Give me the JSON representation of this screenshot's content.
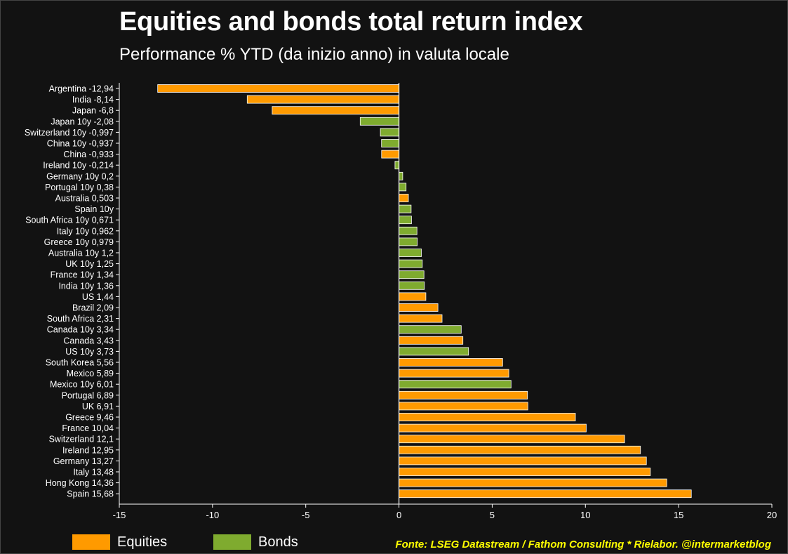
{
  "title": "Equities and bonds total return index",
  "subtitle": "Performance % YTD (da inizio anno) in valuta locale",
  "source": "Fonte: LSEG Datastream / Fathom Consulting * Rielabor. @intermarketblog",
  "legend": [
    {
      "label": "Equities",
      "color": "#ff9a00"
    },
    {
      "label": "Bonds",
      "color": "#7fab2f"
    }
  ],
  "chart_data": {
    "type": "bar",
    "orientation": "horizontal",
    "title": "Equities and bonds total return index",
    "subtitle": "Performance % YTD (da inizio anno) in valuta locale",
    "xlim": [
      -15,
      20
    ],
    "xticks": [
      -15,
      -10,
      -5,
      0,
      5,
      10,
      15,
      20
    ],
    "grid": false,
    "legend_position": "bottom",
    "series": [
      {
        "name": "Equities",
        "color": "#ff9a00"
      },
      {
        "name": "Bonds",
        "color": "#7fab2f"
      }
    ],
    "bars": [
      {
        "label": "Argentina -12,94",
        "value": -12.94,
        "series": "Equities"
      },
      {
        "label": "India -8,14",
        "value": -8.14,
        "series": "Equities"
      },
      {
        "label": "Japan -6,8",
        "value": -6.8,
        "series": "Equities"
      },
      {
        "label": "Japan 10y -2,08",
        "value": -2.08,
        "series": "Bonds"
      },
      {
        "label": "Switzerland 10y -0,997",
        "value": -0.997,
        "series": "Bonds"
      },
      {
        "label": "China 10y -0,937",
        "value": -0.937,
        "series": "Bonds"
      },
      {
        "label": "China -0,933",
        "value": -0.933,
        "series": "Equities"
      },
      {
        "label": "Ireland 10y -0,214",
        "value": -0.214,
        "series": "Bonds"
      },
      {
        "label": "Germany 10y 0,2",
        "value": 0.2,
        "series": "Bonds"
      },
      {
        "label": "Portugal 10y 0,38",
        "value": 0.38,
        "series": "Bonds"
      },
      {
        "label": "Australia 0,503",
        "value": 0.503,
        "series": "Equities"
      },
      {
        "label": "Spain 10y",
        "value": 0.65,
        "series": "Bonds"
      },
      {
        "label": "South Africa 10y 0,671",
        "value": 0.671,
        "series": "Bonds"
      },
      {
        "label": "Italy 10y 0,962",
        "value": 0.962,
        "series": "Bonds"
      },
      {
        "label": "Greece 10y 0,979",
        "value": 0.979,
        "series": "Bonds"
      },
      {
        "label": "Australia 10y 1,2",
        "value": 1.2,
        "series": "Bonds"
      },
      {
        "label": "UK 10y 1,25",
        "value": 1.25,
        "series": "Bonds"
      },
      {
        "label": "France 10y 1,34",
        "value": 1.34,
        "series": "Bonds"
      },
      {
        "label": "India 10y 1,36",
        "value": 1.36,
        "series": "Bonds"
      },
      {
        "label": "US 1,44",
        "value": 1.44,
        "series": "Equities"
      },
      {
        "label": "Brazil 2,09",
        "value": 2.09,
        "series": "Equities"
      },
      {
        "label": "South Africa 2,31",
        "value": 2.31,
        "series": "Equities"
      },
      {
        "label": "Canada 10y 3,34",
        "value": 3.34,
        "series": "Bonds"
      },
      {
        "label": "Canada 3,43",
        "value": 3.43,
        "series": "Equities"
      },
      {
        "label": "US 10y 3,73",
        "value": 3.73,
        "series": "Bonds"
      },
      {
        "label": "South Korea 5,56",
        "value": 5.56,
        "series": "Equities"
      },
      {
        "label": "Mexico 5,89",
        "value": 5.89,
        "series": "Equities"
      },
      {
        "label": "Mexico 10y 6,01",
        "value": 6.01,
        "series": "Bonds"
      },
      {
        "label": "Portugal 6,89",
        "value": 6.89,
        "series": "Equities"
      },
      {
        "label": "UK 6,91",
        "value": 6.91,
        "series": "Equities"
      },
      {
        "label": "Greece 9,46",
        "value": 9.46,
        "series": "Equities"
      },
      {
        "label": "France 10,04",
        "value": 10.04,
        "series": "Equities"
      },
      {
        "label": "Switzerland 12,1",
        "value": 12.1,
        "series": "Equities"
      },
      {
        "label": "Ireland 12,95",
        "value": 12.95,
        "series": "Equities"
      },
      {
        "label": "Germany 13,27",
        "value": 13.27,
        "series": "Equities"
      },
      {
        "label": "Italy 13,48",
        "value": 13.48,
        "series": "Equities"
      },
      {
        "label": "Hong Kong 14,36",
        "value": 14.36,
        "series": "Equities"
      },
      {
        "label": "Spain 15,68",
        "value": 15.68,
        "series": "Equities"
      }
    ]
  }
}
